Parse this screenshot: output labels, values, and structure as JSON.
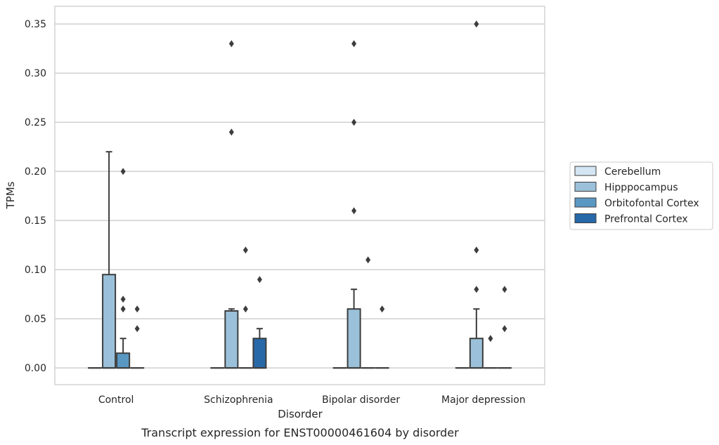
{
  "chart_data": {
    "type": "box",
    "title": "Transcript expression for ENST00000461604 by disorder",
    "xlabel": "Disorder",
    "ylabel": "TPMs",
    "categories": [
      "Control",
      "Schizophrenia",
      "Bipolar disorder",
      "Major depression"
    ],
    "ylim": [
      -0.017,
      0.368
    ],
    "yticks": [
      0.0,
      0.05,
      0.1,
      0.15,
      0.2,
      0.25,
      0.3,
      0.35
    ],
    "ytick_labels": [
      "0.00",
      "0.05",
      "0.10",
      "0.15",
      "0.20",
      "0.25",
      "0.30",
      "0.35"
    ],
    "grid": "horizontal",
    "legend_position": "right",
    "series": [
      {
        "name": "Cerebellum",
        "color": "#d4e5f3",
        "boxes": [
          {
            "q1": 0,
            "median": 0,
            "q3": 0,
            "whislo": 0,
            "whishi": 0,
            "fliers": []
          },
          {
            "q1": 0,
            "median": 0,
            "q3": 0,
            "whislo": 0,
            "whishi": 0,
            "fliers": []
          },
          {
            "q1": 0,
            "median": 0,
            "q3": 0,
            "whislo": 0,
            "whishi": 0,
            "fliers": []
          },
          {
            "q1": 0,
            "median": 0,
            "q3": 0,
            "whislo": 0,
            "whishi": 0,
            "fliers": []
          }
        ]
      },
      {
        "name": "Hipppocampus",
        "color": "#9bc1da",
        "boxes": [
          {
            "q1": 0,
            "median": 0,
            "q3": 0.095,
            "whislo": 0,
            "whishi": 0.22,
            "fliers": []
          },
          {
            "q1": 0,
            "median": 0,
            "q3": 0.058,
            "whislo": 0,
            "whishi": 0.06,
            "fliers": [
              0.24,
              0.33
            ]
          },
          {
            "q1": 0,
            "median": 0,
            "q3": 0.06,
            "whislo": 0,
            "whishi": 0.08,
            "fliers": [
              0.16,
              0.25,
              0.33
            ]
          },
          {
            "q1": 0,
            "median": 0,
            "q3": 0.03,
            "whislo": 0,
            "whishi": 0.06,
            "fliers": [
              0.08,
              0.12,
              0.35
            ]
          }
        ]
      },
      {
        "name": "Orbitofontal Cortex",
        "color": "#5a98c4",
        "boxes": [
          {
            "q1": 0,
            "median": 0,
            "q3": 0.015,
            "whislo": 0,
            "whishi": 0.03,
            "fliers": [
              0.06,
              0.07,
              0.2
            ]
          },
          {
            "q1": 0,
            "median": 0,
            "q3": 0,
            "whislo": 0,
            "whishi": 0,
            "fliers": [
              0.06,
              0.12
            ]
          },
          {
            "q1": 0,
            "median": 0,
            "q3": 0,
            "whislo": 0,
            "whishi": 0,
            "fliers": [
              0.11
            ]
          },
          {
            "q1": 0,
            "median": 0,
            "q3": 0,
            "whislo": 0,
            "whishi": 0,
            "fliers": [
              0.03
            ]
          }
        ]
      },
      {
        "name": "Prefrontal Cortex",
        "color": "#2768a8",
        "boxes": [
          {
            "q1": 0,
            "median": 0,
            "q3": 0,
            "whislo": 0,
            "whishi": 0,
            "fliers": [
              0.04,
              0.06
            ]
          },
          {
            "q1": 0,
            "median": 0,
            "q3": 0.03,
            "whislo": 0,
            "whishi": 0.04,
            "fliers": [
              0.09
            ]
          },
          {
            "q1": 0,
            "median": 0,
            "q3": 0,
            "whislo": 0,
            "whishi": 0,
            "fliers": [
              0.06
            ]
          },
          {
            "q1": 0,
            "median": 0,
            "q3": 0,
            "whislo": 0,
            "whishi": 0,
            "fliers": [
              0.04,
              0.08
            ]
          }
        ]
      }
    ]
  }
}
